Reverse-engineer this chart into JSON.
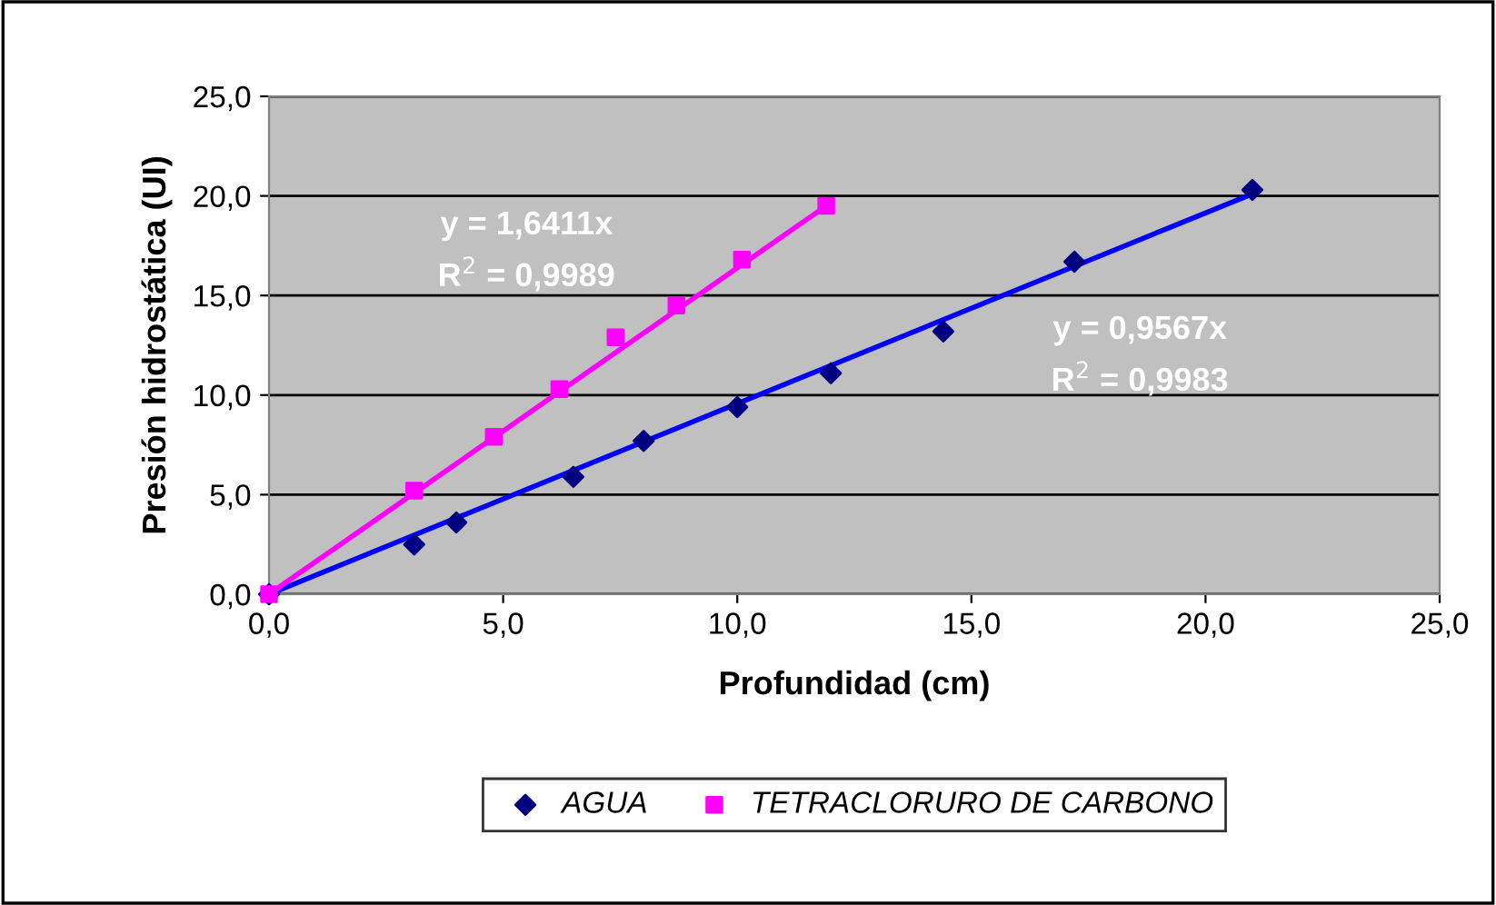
{
  "chart_data": {
    "type": "scatter",
    "xlabel": "Profundidad (cm)",
    "ylabel": "Presión hidrostática (UI)",
    "xlim": [
      0,
      25
    ],
    "ylim": [
      0,
      25
    ],
    "xticks": [
      {
        "value": 0,
        "label": "0,0"
      },
      {
        "value": 5,
        "label": "5,0"
      },
      {
        "value": 10,
        "label": "10,0"
      },
      {
        "value": 15,
        "label": "15,0"
      },
      {
        "value": 20,
        "label": "20,0"
      },
      {
        "value": 25,
        "label": "25,0"
      }
    ],
    "yticks": [
      {
        "value": 0,
        "label": "0,0"
      },
      {
        "value": 5,
        "label": "5,0"
      },
      {
        "value": 10,
        "label": "10,0"
      },
      {
        "value": 15,
        "label": "15,0"
      },
      {
        "value": 20,
        "label": "20,0"
      },
      {
        "value": 25,
        "label": "25,0"
      }
    ],
    "grid": "y",
    "legend": "bottom",
    "series": [
      {
        "name": "AGUA",
        "marker": "diamond",
        "color": "#000080",
        "x": [
          0,
          3.1,
          4.0,
          6.5,
          8.0,
          10.0,
          12.0,
          14.4,
          17.2,
          21.0
        ],
        "values": [
          0,
          2.5,
          3.6,
          5.9,
          7.7,
          9.4,
          11.1,
          13.2,
          16.7,
          20.3
        ]
      },
      {
        "name": "TETRACLORURO DE CARBONO",
        "marker": "square",
        "color": "#ff00ff",
        "x": [
          0,
          3.1,
          4.8,
          6.2,
          7.4,
          8.7,
          10.1,
          11.9
        ],
        "values": [
          0,
          5.2,
          7.9,
          10.3,
          12.9,
          14.5,
          16.8,
          19.5
        ]
      },
      {
        "type": "line",
        "marker": "none",
        "color": "#0000ff",
        "x": [
          0,
          21.0
        ],
        "values": [
          0,
          20.1
        ]
      },
      {
        "type": "line",
        "marker": "none",
        "color": "#ff00ff",
        "x": [
          0,
          11.9
        ],
        "values": [
          0,
          19.5
        ]
      }
    ],
    "annotations": [
      "y = 1,6411x",
      "R$^{2}$ = 0,9989",
      "y = 0,9567x",
      "R$^{2}$ = 0,9983"
    ]
  }
}
